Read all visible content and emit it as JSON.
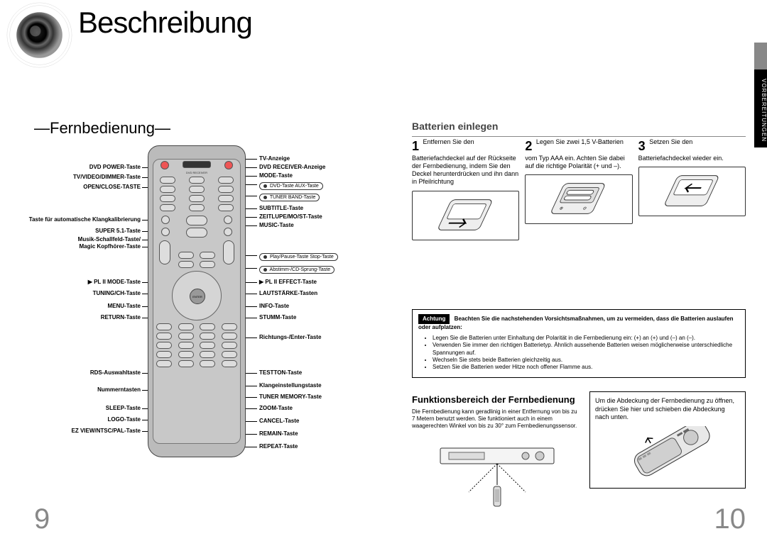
{
  "title": "Beschreibung",
  "side_tab": "VORBEREITUNGEN",
  "section_title": "—Fernbedienung—",
  "left_labels": [
    {
      "t": 26,
      "text": "DVD POWER-Taste"
    },
    {
      "t": 40,
      "text": "TV/VIDEO/DIMMER-Taste"
    },
    {
      "t": 54,
      "text": "OPEN/CLOSE-TASTE"
    },
    {
      "t": 100,
      "text": "Taste für automatische Klangkalibrierung"
    },
    {
      "t": 116,
      "text": "SUPER 5.1-Taste"
    },
    {
      "t": 128,
      "text": "Musik-Schallfeld-Taste/"
    },
    {
      "t": 138,
      "text": "Magic Kopfhörer-Taste"
    },
    {
      "t": 188,
      "text": "▶ PL II MODE-Taste"
    },
    {
      "t": 204,
      "text": "TUNING/CH-Taste"
    },
    {
      "t": 222,
      "text": "MENU-Taste"
    },
    {
      "t": 238,
      "text": "RETURN-Taste"
    },
    {
      "t": 316,
      "text": "RDS-Auswahltaste"
    },
    {
      "t": 340,
      "text": "Nummerntasten"
    },
    {
      "t": 366,
      "text": "SLEEP-Taste"
    },
    {
      "t": 382,
      "text": "LOGO-Taste"
    },
    {
      "t": 398,
      "text": "EZ VIEW/NTSC/PAL-Taste"
    }
  ],
  "right_labels": [
    {
      "t": 14,
      "text": "TV-Anzeige"
    },
    {
      "t": 26,
      "text": "DVD RECEIVER-Anzeige"
    },
    {
      "t": 38,
      "text": "MODE-Taste"
    },
    {
      "t": 50,
      "sub": true,
      "text": "DVD-Taste   AUX-Taste"
    },
    {
      "t": 66,
      "sub": true,
      "text": "TUNER BAND-Taste"
    },
    {
      "t": 84,
      "text": "SUBTITLE-Taste"
    },
    {
      "t": 96,
      "text": "ZEITLUPE/MO/ST-Taste"
    },
    {
      "t": 108,
      "text": "MUSIC-Taste"
    },
    {
      "t": 150,
      "sub": true,
      "text": "Play/Pause-Taste   Stop-Taste"
    },
    {
      "t": 168,
      "sub": true,
      "text": "Abstimm-/CD-Sprung-Taste"
    },
    {
      "t": 188,
      "text": "▶ PL II EFFECT-Taste"
    },
    {
      "t": 204,
      "text": "LAUTSTÄRKE-Tasten"
    },
    {
      "t": 222,
      "text": "INFO-Taste"
    },
    {
      "t": 238,
      "text": "STUMM-Taste"
    },
    {
      "t": 266,
      "text": "Richtungs-/Enter-Taste"
    },
    {
      "t": 316,
      "text": "TESTTON-Taste"
    },
    {
      "t": 334,
      "text": "Klangeinstellungstaste"
    },
    {
      "t": 350,
      "text": "TUNER MEMORY-Taste"
    },
    {
      "t": 366,
      "text": "ZOOM-Taste"
    },
    {
      "t": 384,
      "text": "CANCEL-Taste"
    },
    {
      "t": 402,
      "text": "REMAIN-Taste"
    },
    {
      "t": 420,
      "text": "REPEAT-Taste"
    }
  ],
  "batt_header": "Batterien einlegen",
  "batt_steps": [
    {
      "num": "1",
      "text": "Entfernen Sie den Batteriefachdeckel auf der Rückseite der Fernbedienung, indem Sie den Deckel herunterdrücken und ihn dann in Pfeilrichtung"
    },
    {
      "num": "2",
      "text": "Legen Sie zwei 1,5 V-Batterien vom Typ AAA ein. Achten Sie dabei auf die richtige Polarität (+ und –)."
    },
    {
      "num": "3",
      "text": "Setzen Sie den Batteriefachdeckel wieder ein."
    }
  ],
  "caution": {
    "tag": "Achtung",
    "intro": "Beachten Sie die nachstehenden Vorsichtsmaßnahmen, um zu vermeiden, dass die Batterien auslaufen oder aufplatzen:",
    "items": [
      "Legen Sie die Batterien unter Einhaltung der Polarität in die Fernbedienung ein: (+) an (+) und (–) an (–).",
      "Verwenden Sie immer den richtigen Batterietyp. Ähnlich aussehende Batterien weisen möglicherweise unterschiedliche Spannungen auf.",
      "Wechseln Sie stets beide Batterien gleichzeitig aus.",
      "Setzen Sie die Batterien weder Hitze noch offener Flamme aus."
    ]
  },
  "func_title": "Funktionsbereich der Fernbedienung",
  "func_body": "Die Fernbedienung kann geradlinig in einer Entfernung von bis zu 7 Metern benutzt werden. Sie funktioniert auch in einem waagerechten Winkel von bis zu 30° zum Fernbedienungssensor.",
  "open_box": "Um die Abdeckung der Fernbedienung zu öffnen, drücken Sie hier und schieben die Abdeckung nach unten.",
  "page_left": "9",
  "page_right": "10"
}
